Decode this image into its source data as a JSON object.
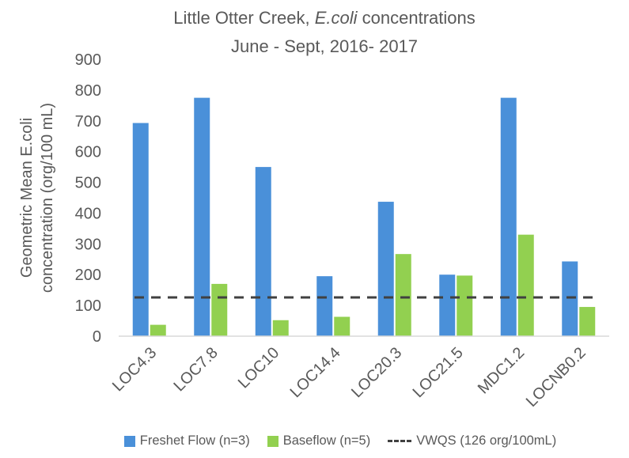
{
  "chart_data": {
    "type": "bar",
    "title_line1_prefix": "Little Otter Creek, ",
    "title_line1_italic": "E.coli",
    "title_line1_suffix": " concentrations",
    "title_line2": "June - Sept, 2016- 2017",
    "ylabel_line1": "Geometric Mean E.coli",
    "ylabel_line2": "concentration (org/100 mL)",
    "xlabel": "",
    "ylim": [
      0,
      900
    ],
    "yticks": [
      "0",
      "100",
      "200",
      "300",
      "400",
      "500",
      "600",
      "700",
      "800",
      "900"
    ],
    "categories": [
      "LOC4.3",
      "LOC7.8",
      "LOC10",
      "LOC14.4",
      "LOC20.3",
      "LOC21.5",
      "MDC1.2",
      "LOCNB0.2"
    ],
    "series": [
      {
        "name": "Freshet Flow (n=3)",
        "color": "#4a90d9",
        "values": [
          693,
          775,
          550,
          195,
          437,
          200,
          775,
          243
        ]
      },
      {
        "name": "Baseflow (n=5)",
        "color": "#92d050",
        "values": [
          37,
          170,
          52,
          63,
          267,
          197,
          330,
          95
        ]
      }
    ],
    "reference_line": {
      "name": "VWQS (126 org/100mL)",
      "value": 126,
      "color": "#404040"
    },
    "legend_position": "bottom",
    "grid": false
  }
}
